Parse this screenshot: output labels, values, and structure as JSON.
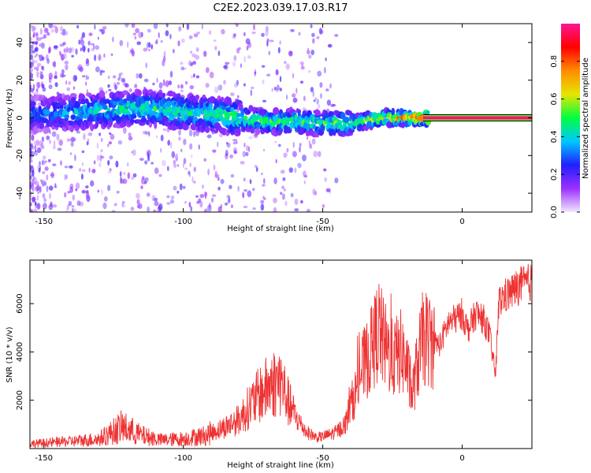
{
  "figure_title": "C2E2.2023.039.17.03.R17",
  "chart_data": [
    {
      "type": "heatmap",
      "xlabel": "Height of straight line (km)",
      "ylabel": "Frequency (Hz)",
      "xlim": [
        -155,
        25
      ],
      "ylim": [
        -50,
        50
      ],
      "x_ticks": [
        -150,
        -100,
        -50,
        0
      ],
      "y_ticks": [
        -40,
        -20,
        0,
        20,
        40
      ],
      "colorbar": {
        "label": "Normalized spectral amplitude",
        "range": [
          0,
          1
        ],
        "ticks": [
          0.0,
          0.2,
          0.4,
          0.6,
          0.8
        ],
        "colors": [
          "#f2e6ff",
          "#9b30ff",
          "#2020ff",
          "#00c8ff",
          "#00ff40",
          "#e6e600",
          "#ff8c00",
          "#ff0000",
          "#ff1493"
        ]
      },
      "ridge": [
        {
          "x": -150,
          "freq": 2,
          "amp": 0.35
        },
        {
          "x": -140,
          "freq": 3,
          "amp": 0.4
        },
        {
          "x": -130,
          "freq": 4,
          "amp": 0.45
        },
        {
          "x": -120,
          "freq": 5,
          "amp": 0.5
        },
        {
          "x": -110,
          "freq": 5,
          "amp": 0.5
        },
        {
          "x": -100,
          "freq": 3,
          "amp": 0.5
        },
        {
          "x": -90,
          "freq": 2,
          "amp": 0.5
        },
        {
          "x": -80,
          "freq": 0,
          "amp": 0.55
        },
        {
          "x": -70,
          "freq": -2,
          "amp": 0.55
        },
        {
          "x": -60,
          "freq": -2,
          "amp": 0.55
        },
        {
          "x": -50,
          "freq": -3,
          "amp": 0.55
        },
        {
          "x": -40,
          "freq": -3,
          "amp": 0.6
        },
        {
          "x": -30,
          "freq": 0,
          "amp": 0.65
        },
        {
          "x": -20,
          "freq": 0,
          "amp": 0.8
        },
        {
          "x": -10,
          "freq": 0,
          "amp": 0.95
        },
        {
          "x": 0,
          "freq": 0,
          "amp": 0.98
        },
        {
          "x": 10,
          "freq": 0,
          "amp": 0.98
        },
        {
          "x": 20,
          "freq": 0,
          "amp": 0.98
        }
      ]
    },
    {
      "type": "line",
      "xlabel": "Height of straight line (km)",
      "ylabel": "SNR (10 * v/v)",
      "xlim": [
        -155,
        25
      ],
      "ylim": [
        0,
        7800
      ],
      "x_ticks": [
        -150,
        -100,
        -50,
        0
      ],
      "y_ticks": [
        2000,
        4000,
        6000
      ],
      "series": [
        {
          "color": "#ee3333",
          "x": [
            -155,
            -140,
            -130,
            -122,
            -115,
            -108,
            -100,
            -92,
            -85,
            -80,
            -76,
            -72,
            -68,
            -65,
            -62,
            -59,
            -56,
            -52,
            -50,
            -47,
            -45,
            -42,
            -40,
            -38,
            -36,
            -34,
            -32,
            -30,
            -28,
            -25,
            -22,
            -20,
            -18,
            -16,
            -14,
            -12,
            -8,
            -5,
            -2,
            0,
            2,
            5,
            8,
            10,
            12,
            13,
            15,
            18,
            20,
            22,
            25
          ],
          "values": [
            200,
            300,
            400,
            900,
            550,
            350,
            400,
            550,
            900,
            1200,
            1800,
            2300,
            2700,
            2800,
            1800,
            1200,
            700,
            450,
            500,
            600,
            700,
            1000,
            1800,
            2400,
            3300,
            3700,
            4200,
            5000,
            4300,
            3700,
            4000,
            3500,
            2200,
            3500,
            4600,
            4500,
            4300,
            5200,
            5400,
            5600,
            4900,
            5600,
            5300,
            4600,
            3000,
            6000,
            6300,
            6500,
            6700,
            6800,
            6900
          ]
        }
      ]
    }
  ]
}
